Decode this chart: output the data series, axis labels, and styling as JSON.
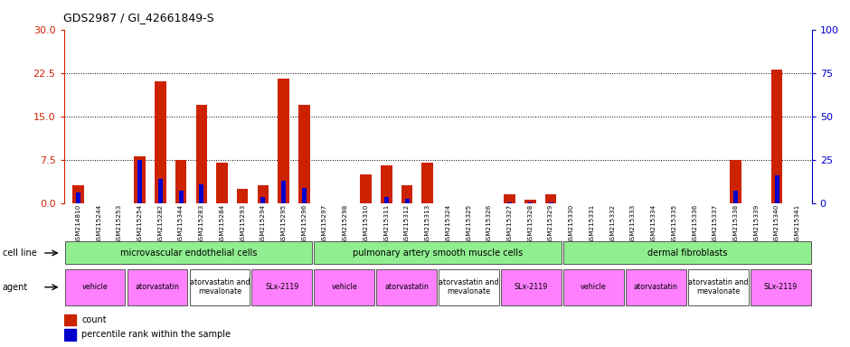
{
  "title": "GDS2987 / GI_42661849-S",
  "samples": [
    "GSM214810",
    "GSM215244",
    "GSM215253",
    "GSM215254",
    "GSM215282",
    "GSM215344",
    "GSM215283",
    "GSM215284",
    "GSM215293",
    "GSM215294",
    "GSM215295",
    "GSM215296",
    "GSM215297",
    "GSM215298",
    "GSM215310",
    "GSM215311",
    "GSM215312",
    "GSM215313",
    "GSM215324",
    "GSM215325",
    "GSM215326",
    "GSM215327",
    "GSM215328",
    "GSM215329",
    "GSM215330",
    "GSM215331",
    "GSM215332",
    "GSM215333",
    "GSM215334",
    "GSM215335",
    "GSM215336",
    "GSM215337",
    "GSM215338",
    "GSM215339",
    "GSM215340",
    "GSM215341"
  ],
  "count_values": [
    3.0,
    0.0,
    0.0,
    8.0,
    21.0,
    7.5,
    17.0,
    7.0,
    2.5,
    3.0,
    21.5,
    17.0,
    0.0,
    0.0,
    5.0,
    6.5,
    3.0,
    7.0,
    0.0,
    0.0,
    0.0,
    1.5,
    0.5,
    1.5,
    0.0,
    0.0,
    0.0,
    0.0,
    0.0,
    0.0,
    0.0,
    0.0,
    7.5,
    0.0,
    23.0,
    0.0
  ],
  "percentile_values": [
    6.0,
    0.0,
    0.0,
    25.0,
    14.0,
    7.0,
    11.0,
    0.0,
    0.0,
    3.5,
    13.0,
    8.5,
    0.0,
    0.0,
    0.0,
    3.5,
    2.5,
    0.0,
    0.0,
    0.0,
    0.0,
    0.5,
    0.5,
    0.5,
    0.0,
    0.0,
    0.0,
    0.0,
    0.0,
    0.0,
    0.0,
    0.0,
    7.0,
    0.0,
    16.0,
    0.0
  ],
  "ylim_left": [
    0,
    30
  ],
  "ylim_right": [
    0,
    100
  ],
  "yticks_left": [
    0,
    7.5,
    15,
    22.5,
    30
  ],
  "yticks_right": [
    0,
    25,
    50,
    75,
    100
  ],
  "cell_line_groups": [
    {
      "label": "microvascular endothelial cells",
      "start": 0,
      "end": 12,
      "color": "#90EE90"
    },
    {
      "label": "pulmonary artery smooth muscle cells",
      "start": 12,
      "end": 24,
      "color": "#90EE90"
    },
    {
      "label": "dermal fibroblasts",
      "start": 24,
      "end": 36,
      "color": "#90EE90"
    }
  ],
  "agent_groups": [
    {
      "label": "vehicle",
      "start": 0,
      "end": 3,
      "color": "#FF80FF"
    },
    {
      "label": "atorvastatin",
      "start": 3,
      "end": 6,
      "color": "#FF80FF"
    },
    {
      "label": "atorvastatin and\nmevalonate",
      "start": 6,
      "end": 9,
      "color": "#FFFFFF"
    },
    {
      "label": "SLx-2119",
      "start": 9,
      "end": 12,
      "color": "#FF80FF"
    },
    {
      "label": "vehicle",
      "start": 12,
      "end": 15,
      "color": "#FF80FF"
    },
    {
      "label": "atorvastatin",
      "start": 15,
      "end": 18,
      "color": "#FF80FF"
    },
    {
      "label": "atorvastatin and\nmevalonate",
      "start": 18,
      "end": 21,
      "color": "#FFFFFF"
    },
    {
      "label": "SLx-2119",
      "start": 21,
      "end": 24,
      "color": "#FF80FF"
    },
    {
      "label": "vehicle",
      "start": 24,
      "end": 27,
      "color": "#FF80FF"
    },
    {
      "label": "atorvastatin",
      "start": 27,
      "end": 30,
      "color": "#FF80FF"
    },
    {
      "label": "atorvastatin and\nmevalonate",
      "start": 30,
      "end": 33,
      "color": "#FFFFFF"
    },
    {
      "label": "SLx-2119",
      "start": 33,
      "end": 36,
      "color": "#FF80FF"
    }
  ],
  "count_color": "#CC2200",
  "percentile_color": "#0000CC",
  "tick_bg_color": "#CCCCCC",
  "plot_bg_color": "#FFFFFF"
}
